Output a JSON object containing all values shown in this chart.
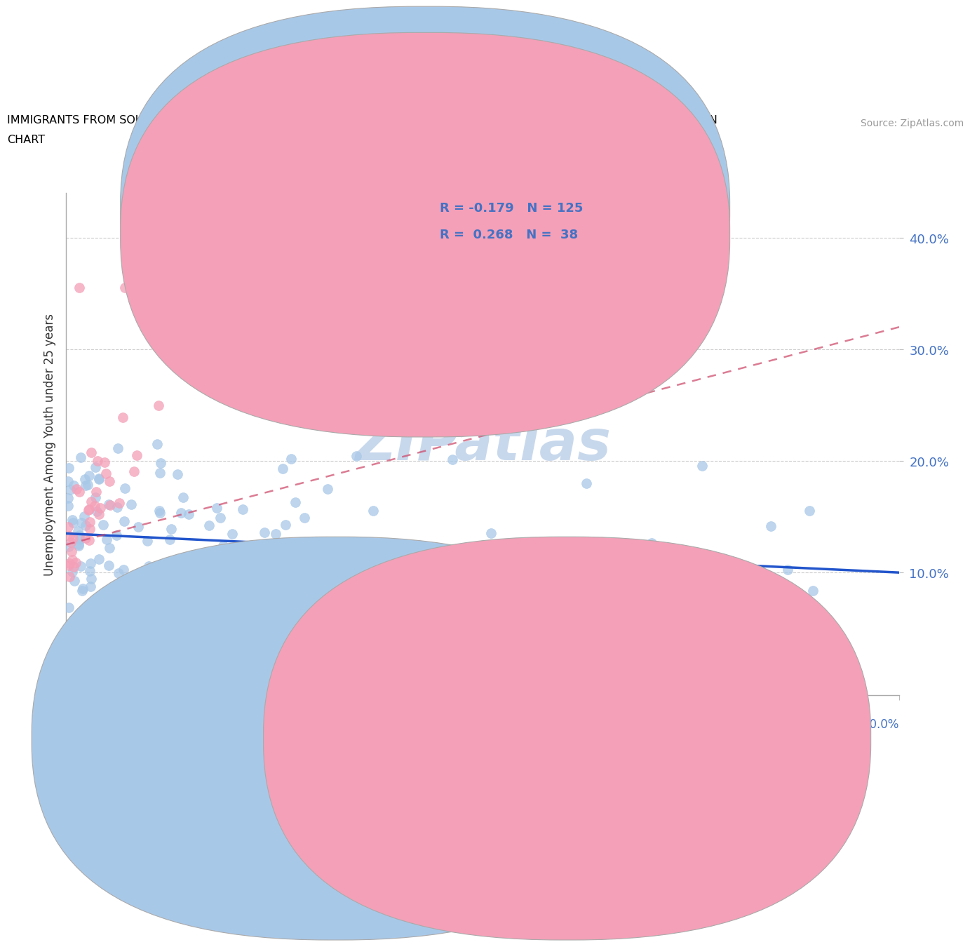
{
  "title_line1": "IMMIGRANTS FROM SOUTH CENTRAL ASIA VS YUGOSLAVIAN UNEMPLOYMENT AMONG YOUTH UNDER 25 YEARS CORRELATION",
  "title_line2": "CHART",
  "source": "Source: ZipAtlas.com",
  "ylabel": "Unemployment Among Youth under 25 years",
  "xlim": [
    0.0,
    0.5
  ],
  "ylim": [
    -0.01,
    0.44
  ],
  "blue_R": -0.179,
  "blue_N": 125,
  "pink_R": 0.268,
  "pink_N": 38,
  "blue_scatter_color": "#a8c8e8",
  "pink_scatter_color": "#f4a0b8",
  "blue_line_color": "#2255cc",
  "pink_line_color": "#cc4466",
  "axis_label_color": "#4472c4",
  "watermark": "ZIPatlas",
  "watermark_color": "#c8d8ec",
  "ytick_values": [
    0.1,
    0.2,
    0.3,
    0.4
  ],
  "ytick_labels": [
    "10.0%",
    "20.0%",
    "30.0%",
    "40.0%"
  ],
  "blue_trend_start_y": 0.135,
  "blue_trend_end_y": 0.1,
  "pink_trend_start_y": 0.125,
  "pink_trend_end_y": 0.32
}
